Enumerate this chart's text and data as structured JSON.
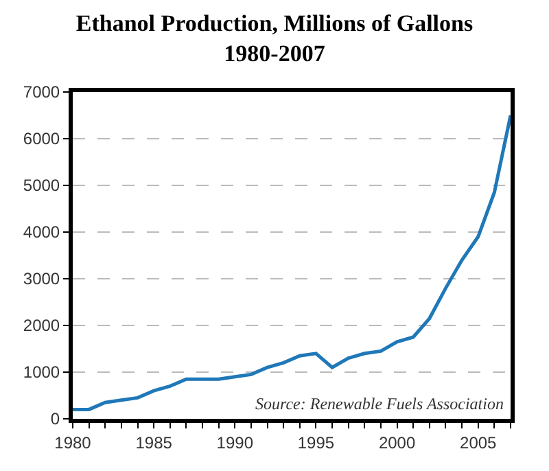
{
  "chart_data": {
    "type": "line",
    "title": "Ethanol Production, Millions of Gallons\n1980-2007",
    "x": [
      1980,
      1981,
      1982,
      1983,
      1984,
      1985,
      1986,
      1987,
      1988,
      1989,
      1990,
      1991,
      1992,
      1993,
      1994,
      1995,
      1996,
      1997,
      1998,
      1999,
      2000,
      2001,
      2002,
      2003,
      2004,
      2005,
      2006,
      2007
    ],
    "series": [
      {
        "color": "#1f78b8",
        "values": [
          200,
          200,
          350,
          400,
          450,
          600,
          700,
          850,
          850,
          850,
          900,
          950,
          1100,
          1200,
          1350,
          1400,
          1100,
          1300,
          1400,
          1450,
          1650,
          1750,
          2150,
          2800,
          3400,
          3900,
          4850,
          6500
        ]
      }
    ],
    "xlim": [
      1980,
      2007
    ],
    "xticks": [
      1980,
      {
        "value": 1981,
        "label": null
      },
      {
        "value": 1982,
        "label": null
      },
      {
        "value": 1983,
        "label": null
      },
      {
        "value": 1984,
        "label": null
      },
      1985,
      {
        "value": 1986,
        "label": null
      },
      {
        "value": 1987,
        "label": null
      },
      {
        "value": 1988,
        "label": null
      },
      {
        "value": 1989,
        "label": null
      },
      1990,
      {
        "value": 1991,
        "label": null
      },
      {
        "value": 1992,
        "label": null
      },
      {
        "value": 1993,
        "label": null
      },
      {
        "value": 1994,
        "label": null
      },
      1995,
      {
        "value": 1996,
        "label": null
      },
      {
        "value": 1997,
        "label": null
      },
      {
        "value": 1998,
        "label": null
      },
      {
        "value": 1999,
        "label": null
      },
      2000,
      {
        "value": 2001,
        "label": null
      },
      {
        "value": 2002,
        "label": null
      },
      {
        "value": 2003,
        "label": null
      },
      {
        "value": 2004,
        "label": null
      },
      2005,
      {
        "value": 2006,
        "label": null
      },
      {
        "value": 2007,
        "label": null
      }
    ],
    "ylim": [
      0,
      7000
    ],
    "yticks": [
      0,
      1000,
      2000,
      3000,
      4000,
      5000,
      6000,
      7000
    ],
    "grid": "y",
    "marker": "none",
    "line_style": "solid",
    "annotations": [
      "Source: Renewable Fuels Association"
    ]
  }
}
